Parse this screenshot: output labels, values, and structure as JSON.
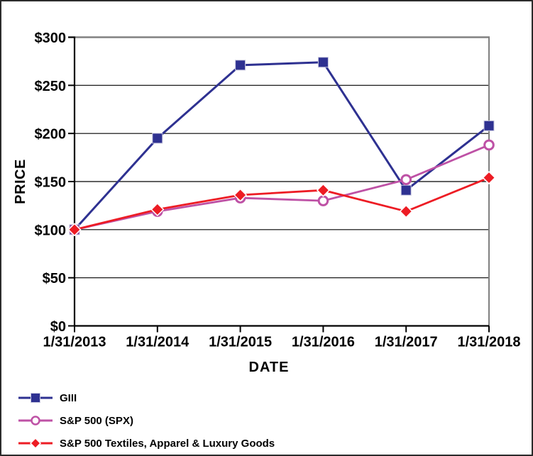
{
  "figure": {
    "background": "#ffffff",
    "outer_border_color": "#2b2b2b"
  },
  "chart_data": {
    "type": "line",
    "title": "",
    "xlabel": "DATE",
    "ylabel": "PRICE",
    "x": [
      "1/31/2013",
      "1/31/2014",
      "1/31/2015",
      "1/31/2016",
      "1/31/2017",
      "1/31/2018"
    ],
    "ylim": [
      0,
      300
    ],
    "y_ticks": [
      0,
      50,
      100,
      150,
      200,
      250,
      300
    ],
    "y_tick_prefix": "$",
    "grid": true,
    "gridline_color": "#000000",
    "plot_border_color": "#808080",
    "axis_color": "#000000",
    "legend_position": "bottom-left",
    "series": [
      {
        "name": "GIII",
        "color": "#2E3191",
        "marker": "filled-square",
        "values": [
          100,
          195,
          271,
          274,
          141,
          208
        ]
      },
      {
        "name": "S&P 500 (SPX)",
        "color": "#BE51A5",
        "marker": "open-circle",
        "values": [
          100,
          119,
          133,
          130,
          152,
          188
        ]
      },
      {
        "name": "S&P 500 Textiles, Apparel & Luxury Goods",
        "color": "#ED1C24",
        "marker": "filled-diamond",
        "values": [
          100,
          121,
          136,
          141,
          119,
          154
        ]
      }
    ]
  }
}
